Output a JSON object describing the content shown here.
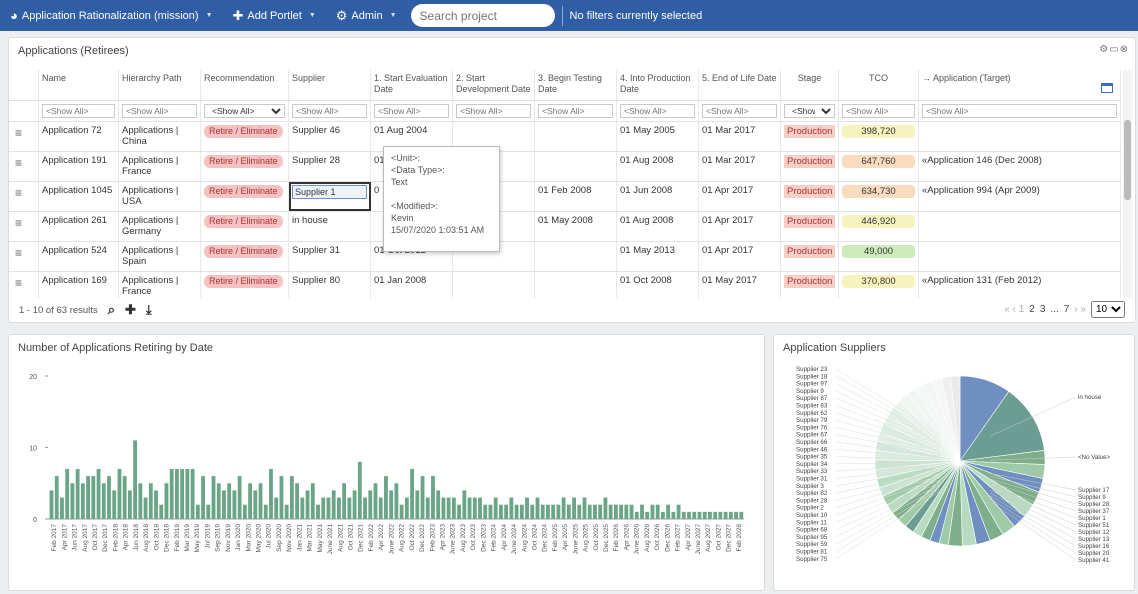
{
  "topbar": {
    "project_label": "Application Rationalization (mission)",
    "add_portlet_label": "Add Portlet",
    "admin_label": "Admin",
    "search_placeholder": "Search project",
    "filters_text": "No filters currently selected"
  },
  "grid_portlet": {
    "title": "Applications (Retirees)",
    "columns": [
      "Name",
      "Hierarchy Path",
      "Recommendation",
      "Supplier",
      "1. Start Evaluation Date",
      "2. Start Development Date",
      "3. Begin Testing Date",
      "4. Into Production Date",
      "5. End of Life Date",
      "Stage",
      "TCO",
      "→ Application (Target)"
    ],
    "filter_placeholder": "<Show All>",
    "stage_filter": "<Show",
    "rows": [
      {
        "name": "Application 72",
        "path": "Applications | China",
        "recommendation": "Retire / Eliminate",
        "supplier": "Supplier 46",
        "start_eval": "01 Aug 2004",
        "start_dev": "",
        "begin_test": "",
        "into_prod": "01 May 2005",
        "eol": "01 Mar 2017",
        "stage": "Production",
        "tco": "398,720",
        "tco_color": "#f6f3bf",
        "target": ""
      },
      {
        "name": "Application 191",
        "path": "Applications | France",
        "recommendation": "Retire / Eliminate",
        "supplier": "Supplier 28",
        "start_eval": "01",
        "start_dev": "",
        "begin_test": "",
        "into_prod": "01 Aug 2008",
        "eol": "01 Mar 2017",
        "stage": "Production",
        "tco": "647,760",
        "tco_color": "#f9dcc0",
        "target": "«Application 146 (Dec 2008)"
      },
      {
        "name": "Application 1045",
        "path": "Applications | USA",
        "recommendation": "Retire / Eliminate",
        "supplier": "Supplier 1",
        "start_eval": "0",
        "start_dev": "007",
        "begin_test": "01 Feb 2008",
        "into_prod": "01 Jun 2008",
        "eol": "01 Apr 2017",
        "stage": "Production",
        "tco": "634,730",
        "tco_color": "#f9dcc0",
        "target": "«Application 994 (Apr 2009)"
      },
      {
        "name": "Application 261",
        "path": "Applications | Germany",
        "recommendation": "Retire / Eliminate",
        "supplier": "in house",
        "start_eval": "",
        "start_dev": "8",
        "begin_test": "01 May 2008",
        "into_prod": "01 Aug 2008",
        "eol": "01 Apr 2017",
        "stage": "Production",
        "tco": "446,920",
        "tco_color": "#f6f3bf",
        "target": ""
      },
      {
        "name": "Application 524",
        "path": "Applications | Spain",
        "recommendation": "Retire / Eliminate",
        "supplier": "Supplier 31",
        "start_eval": "01 Oct 2012",
        "start_dev": "",
        "begin_test": "",
        "into_prod": "01 May 2013",
        "eol": "01 Apr 2017",
        "stage": "Production",
        "tco": "49,000",
        "tco_color": "#cdebbb",
        "target": ""
      },
      {
        "name": "Application 169",
        "path": "Applications | France",
        "recommendation": "Retire / Eliminate",
        "supplier": "Supplier 80",
        "start_eval": "01 Jan 2008",
        "start_dev": "",
        "begin_test": "",
        "into_prod": "01 Oct 2008",
        "eol": "01 May 2017",
        "stage": "Production",
        "tco": "370,800",
        "tco_color": "#f6f3bf",
        "target": "«Application 131 (Feb 2012)"
      }
    ],
    "tooltip": {
      "unit": "<Unit>:",
      "data_type_label": "<Data Type>:",
      "data_type": "Text",
      "modified_label": "<Modified>:",
      "modified_by": "Kevin",
      "modified_at": "15/07/2020 1:03:51 AM"
    },
    "results_text": "1 - 10 of 63 results",
    "pager": {
      "prev": "« ‹ 1",
      "p2": "2",
      "p3": "3",
      "ellipsis": "...",
      "p7": "7",
      "next": "› »",
      "page_size": "10"
    }
  },
  "bar_portlet": {
    "title": "Number of Applications Retiring by Date"
  },
  "pie_portlet": {
    "title": "Application Suppliers"
  },
  "chart_data": [
    {
      "type": "bar",
      "title": "Number of Applications Retiring by Date",
      "ylim": [
        0,
        20
      ],
      "yticks": [
        0,
        10,
        20
      ],
      "grid": false,
      "color": "#6aa587",
      "categories": [
        "Feb 2017",
        "Mar 2017",
        "Apr 2017",
        "May 2017",
        "Jun 2017",
        "Jul 2017",
        "Aug 2017",
        "Sep 2017",
        "Oct 2017",
        "Nov 2017",
        "Dec 2017",
        "Jan 2018",
        "Feb 2018",
        "Mar 2018",
        "Apr 2018",
        "May 2018",
        "Jun 2018",
        "Jul 2018",
        "Aug 2018",
        "Sep 2018",
        "Oct 2018",
        "Nov 2018",
        "Dec 2018",
        "Jan 2019",
        "Feb 2019",
        "Mar 2019",
        "Apr 2019",
        "May 2019",
        "Jun 2019",
        "Jul 2019",
        "Aug 2019",
        "Sep 2019",
        "Oct 2019",
        "Nov 2019",
        "Dec 2019",
        "Jan 2020",
        "Feb 2020",
        "Mar 2020",
        "Apr 2020",
        "May 2020",
        "Jun 2020",
        "Jul 2020",
        "Aug 2020",
        "Sep 2020",
        "Oct 2020",
        "Nov 2020",
        "Dec 2020",
        "Jan 2021",
        "Feb 2021",
        "Mar 2021",
        "Apr 2021",
        "May 2021",
        "Jun 2021",
        "Jul 2021",
        "Aug 2021",
        "Sep 2021",
        "Oct 2021",
        "Nov 2021",
        "Dec 2021",
        "Jan 2022",
        "Feb 2022",
        "Mar 2022",
        "Apr 2022",
        "May 2022",
        "Jun 2022",
        "Jul 2022",
        "Aug 2022",
        "Sep 2022",
        "Oct 2022",
        "Nov 2022",
        "Dec 2022",
        "Jan 2023",
        "Feb 2023",
        "Mar 2023",
        "Apr 2023",
        "May 2023",
        "Jun 2023",
        "Jul 2023",
        "Aug 2023",
        "Sep 2023",
        "Oct 2023",
        "Nov 2023",
        "Dec 2023",
        "Jan 2024",
        "Feb 2024",
        "Mar 2024",
        "Apr 2024",
        "May 2024",
        "Jun 2024",
        "Jul 2024",
        "Aug 2024",
        "Sep 2024",
        "Oct 2024",
        "Nov 2024",
        "Dec 2024",
        "Jan 2025",
        "Feb 2025",
        "Mar 2025",
        "Apr 2025",
        "May 2025",
        "Jun 2025",
        "Jul 2025",
        "Aug 2025",
        "Sep 2025",
        "Oct 2025",
        "Nov 2025",
        "Dec 2025",
        "Jan 2026",
        "Feb 2026",
        "Mar 2026",
        "Apr 2026",
        "May 2026",
        "Jun 2026",
        "Jul 2026",
        "Aug 2026",
        "Sep 2026",
        "Oct 2026",
        "Nov 2026",
        "Dec 2026",
        "Jan 2027",
        "Feb 2027",
        "Mar 2027",
        "Apr 2027",
        "May 2027",
        "Jun 2027",
        "Jul 2027",
        "Aug 2027",
        "Sep 2027",
        "Oct 2027",
        "Nov 2027",
        "Dec 2027",
        "Jan 2028",
        "Feb 2028"
      ],
      "values": [
        4,
        6,
        3,
        7,
        5,
        7,
        5,
        6,
        6,
        7,
        5,
        6,
        4,
        7,
        6,
        4,
        11,
        5,
        3,
        5,
        4,
        2,
        5,
        7,
        7,
        7,
        7,
        7,
        2,
        6,
        2,
        6,
        5,
        4,
        5,
        4,
        6,
        2,
        5,
        4,
        5,
        2,
        7,
        3,
        6,
        2,
        6,
        5,
        3,
        4,
        5,
        2,
        3,
        3,
        4,
        3,
        5,
        3,
        4,
        8,
        3,
        4,
        5,
        3,
        6,
        4,
        5,
        2,
        3,
        7,
        4,
        6,
        3,
        6,
        4,
        3,
        3,
        3,
        2,
        4,
        3,
        3,
        3,
        2,
        2,
        3,
        2,
        2,
        3,
        2,
        2,
        3,
        2,
        3,
        2,
        2,
        2,
        2,
        3,
        2,
        3,
        2,
        3,
        2,
        2,
        2,
        3,
        2,
        2,
        2,
        2,
        2,
        1,
        2,
        1,
        2,
        2,
        1,
        2,
        1,
        2,
        1,
        1,
        1,
        1,
        1,
        1,
        1,
        1,
        1,
        1,
        1,
        1
      ],
      "xtick_labels": [
        "Feb 2017",
        "Apr 2017",
        "Jun 2017",
        "Aug 2017",
        "Oct 2017",
        "Dec 2017",
        "Feb 2018",
        "Apr 2018",
        "Jun 2018",
        "Aug 2018",
        "Oct 2018",
        "Dec 2018",
        "Feb 2019",
        "Mar 2019",
        "May 2019",
        "Jul 2019",
        "Sep 2019",
        "Nov 2019",
        "Jan 2020",
        "Mar 2020",
        "May 2020",
        "Jul 2020",
        "Sep 2020",
        "Nov 2020",
        "Jan 2021",
        "Mar 2021",
        "May 2021",
        "June 2021",
        "Aug 2021",
        "Oct 2021",
        "Dec 2021",
        "Feb 2022",
        "Apr 2022",
        "June 2022",
        "Aug 2022",
        "Oct 2022",
        "Dec 2022",
        "Feb 2023",
        "Apr 2023",
        "June 2023",
        "Aug 2023",
        "Oct 2023",
        "Dec 2023",
        "Feb 2024",
        "Apr 2024",
        "June 2024",
        "Aug 2024",
        "Oct 2024",
        "Dec 2024",
        "Feb 2025",
        "Apr 2025",
        "June 2025",
        "Aug 2025",
        "Oct 2025",
        "Dec 2025",
        "Feb 2026",
        "Apr 2026",
        "June 2026",
        "Aug 2026",
        "Oct 2026",
        "Dec 2026",
        "Feb 2027",
        "Apr 2027",
        "June 2027",
        "Aug 2027",
        "Oct 2027",
        "Dec 2027",
        "Feb 2028"
      ]
    },
    {
      "type": "pie",
      "title": "Application Suppliers",
      "slices": [
        {
          "label": "in house",
          "value": 11,
          "color": "#6e8fbf"
        },
        {
          "label": "<No Value>",
          "value": 15,
          "color": "#6b9d93"
        },
        {
          "label": "Supplier 17",
          "value": 3,
          "color": "#7fae8a"
        },
        {
          "label": "Supplier 9",
          "value": 3,
          "color": "#9fcaa7"
        },
        {
          "label": "Supplier 28",
          "value": 3,
          "color": "#6e8fbf"
        },
        {
          "label": "Supplier 37",
          "value": 3,
          "color": "#7fae8a"
        },
        {
          "label": "Supplier 1",
          "value": 3,
          "color": "#b7dbc0"
        },
        {
          "label": "Supplier 51",
          "value": 3,
          "color": "#6e8fbf"
        },
        {
          "label": "Supplier 12",
          "value": 3,
          "color": "#9fcaa7"
        },
        {
          "label": "Supplier 13",
          "value": 3,
          "color": "#7fae8a"
        },
        {
          "label": "Supplier 16",
          "value": 3,
          "color": "#6e8fbf"
        },
        {
          "label": "Supplier 20",
          "value": 3,
          "color": "#b7dbc0"
        },
        {
          "label": "Supplier 41",
          "value": 3,
          "color": "#7fae8a"
        },
        {
          "label": "Supplier 75",
          "value": 2,
          "color": "#9fcaa7"
        },
        {
          "label": "Supplier 81",
          "value": 2,
          "color": "#6e8fbf"
        },
        {
          "label": "Supplier 59",
          "value": 2,
          "color": "#7fae8a"
        },
        {
          "label": "Supplier 95",
          "value": 2,
          "color": "#b7dbc0"
        },
        {
          "label": "Supplier 68",
          "value": 2,
          "color": "#6b9d93"
        },
        {
          "label": "Supplier 11",
          "value": 2,
          "color": "#9fcaa7"
        },
        {
          "label": "Supplier 10",
          "value": 2,
          "color": "#7fae8a"
        },
        {
          "label": "Supplier 2",
          "value": 2,
          "color": "#b7dbc0"
        },
        {
          "label": "Supplier 28",
          "value": 2,
          "color": "#9fcaa7"
        },
        {
          "label": "Supplier 82",
          "value": 2,
          "color": "#c9e3d0"
        },
        {
          "label": "Supplier 3",
          "value": 2,
          "color": "#b7dbc0"
        },
        {
          "label": "Supplier 31",
          "value": 2,
          "color": "#d3e8da"
        },
        {
          "label": "Supplier 33",
          "value": 2,
          "color": "#c9e3d0"
        },
        {
          "label": "Supplier 34",
          "value": 2,
          "color": "#dbece0"
        },
        {
          "label": "Supplier 35",
          "value": 2,
          "color": "#d3e8da"
        },
        {
          "label": "Supplier 46",
          "value": 2,
          "color": "#e2efe6"
        },
        {
          "label": "Supplier 66",
          "value": 2,
          "color": "#dbece0"
        },
        {
          "label": "Supplier 67",
          "value": 2,
          "color": "#e6f1ea"
        },
        {
          "label": "Supplier 76",
          "value": 2,
          "color": "#e2efe6"
        },
        {
          "label": "Supplier 79",
          "value": 2,
          "color": "#ebf4ee"
        },
        {
          "label": "Supplier 62",
          "value": 2,
          "color": "#eef5f0"
        },
        {
          "label": "Supplier 83",
          "value": 2,
          "color": "#f1f6f3"
        },
        {
          "label": "Supplier 87",
          "value": 2,
          "color": "#f3f8f5"
        },
        {
          "label": "Supplier 9",
          "value": 2,
          "color": "#f4f5f6"
        },
        {
          "label": "Supplier 97",
          "value": 2,
          "color": "#f6f6f7"
        },
        {
          "label": "Supplier 18",
          "value": 2,
          "color": "#eeeff0"
        },
        {
          "label": "Supplier 23",
          "value": 2,
          "color": "#e9eaeb"
        }
      ],
      "left_labels": [
        "Supplier 23",
        "Supplier 18",
        "Supplier 97",
        "Supplier 9",
        "Supplier 87",
        "Supplier 83",
        "Supplier 62",
        "Supplier 79",
        "Supplier 76",
        "Supplier 67",
        "Supplier 66",
        "Supplier 46",
        "Supplier 35",
        "Supplier 34",
        "Supplier 33",
        "Supplier 31",
        "Supplier 3",
        "Supplier 82",
        "Supplier 28",
        "Supplier 2",
        "Supplier 10",
        "Supplier 11",
        "Supplier 68",
        "Supplier 95",
        "Supplier 59",
        "Supplier 81",
        "Supplier 75"
      ],
      "right_labels": [
        "in house",
        "<No Value>",
        "Supplier 17",
        "Supplier 9",
        "Supplier 28",
        "Supplier 37",
        "Supplier 1",
        "Supplier 51",
        "Supplier 12",
        "Supplier 13",
        "Supplier 16",
        "Supplier 20",
        "Supplier 41"
      ]
    }
  ]
}
